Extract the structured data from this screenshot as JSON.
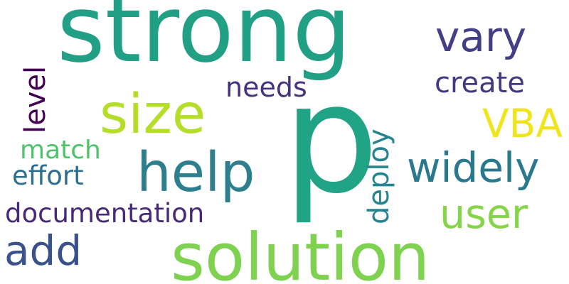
{
  "words": [
    {
      "key": "strong",
      "text": "strong",
      "color": "#22a085"
    },
    {
      "key": "p",
      "text": "p",
      "color": "#21a386"
    },
    {
      "key": "solution",
      "text": "solution",
      "color": "#7ed24f"
    },
    {
      "key": "help",
      "text": "help",
      "color": "#2d7f8e"
    },
    {
      "key": "size",
      "text": "size",
      "color": "#b5de2b"
    },
    {
      "key": "vary",
      "text": "vary",
      "color": "#433e85"
    },
    {
      "key": "VBA",
      "text": "VBA",
      "color": "#f0e51c"
    },
    {
      "key": "widely",
      "text": "widely",
      "color": "#2a788e"
    },
    {
      "key": "user",
      "text": "user",
      "color": "#86d549"
    },
    {
      "key": "add",
      "text": "add",
      "color": "#3b518b"
    },
    {
      "key": "documentation",
      "text": "documentation",
      "color": "#482878"
    },
    {
      "key": "create",
      "text": "create",
      "color": "#453781"
    },
    {
      "key": "needs",
      "text": "needs",
      "color": "#46327e"
    },
    {
      "key": "deploy",
      "text": "deploy",
      "color": "#25858e"
    },
    {
      "key": "level",
      "text": "level",
      "color": "#440154"
    },
    {
      "key": "match",
      "text": "match",
      "color": "#4ec36b"
    },
    {
      "key": "effort",
      "text": "effort",
      "color": "#2e6e8e"
    }
  ]
}
